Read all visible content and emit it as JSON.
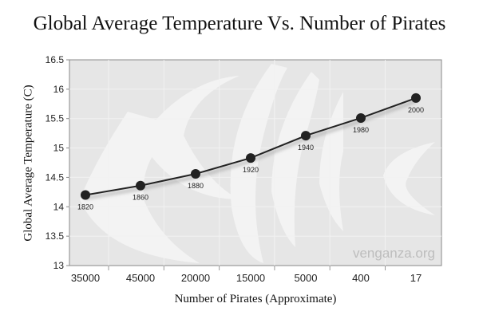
{
  "chart_data": {
    "type": "line",
    "title": "Global Average Temperature Vs. Number of Pirates",
    "xlabel": "Number of Pirates (Approximate)",
    "ylabel": "Global Average Temperature (C)",
    "categories": [
      "35000",
      "45000",
      "20000",
      "15000",
      "5000",
      "400",
      "17"
    ],
    "point_labels": [
      "1820",
      "1860",
      "1880",
      "1920",
      "1940",
      "1980",
      "2000"
    ],
    "values": [
      14.2,
      14.36,
      14.56,
      14.83,
      15.21,
      15.51,
      15.85
    ],
    "ylim": [
      13,
      16.5
    ],
    "yticks": [
      "13",
      "13.5",
      "14",
      "14.5",
      "15",
      "15.5",
      "16",
      "16.5"
    ],
    "grid": true,
    "watermark": "venganza.org",
    "colors": {
      "line": "#222222",
      "plot_bg": "#e6e6e6",
      "grid": "#f2f2f2"
    }
  }
}
